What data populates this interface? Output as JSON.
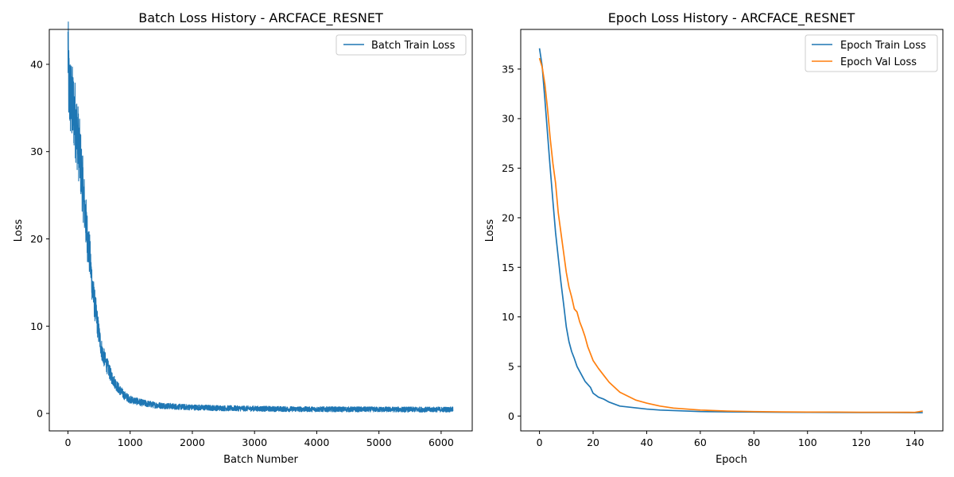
{
  "chart_data": [
    {
      "type": "line",
      "title": "Batch Loss History - ARCFACE_RESNET",
      "xlabel": "Batch Number",
      "ylabel": "Loss",
      "xlim": [
        -300,
        6500
      ],
      "ylim": [
        -2,
        44
      ],
      "xticks": [
        0,
        1000,
        2000,
        3000,
        4000,
        5000,
        6000
      ],
      "yticks": [
        0,
        10,
        20,
        30,
        40
      ],
      "grid": false,
      "legend_position": "top-right",
      "noisy": true,
      "series": [
        {
          "name": "Batch Train Loss",
          "color": "#1f77b4",
          "x": [
            0,
            10,
            30,
            60,
            100,
            150,
            200,
            250,
            300,
            350,
            400,
            450,
            500,
            550,
            600,
            700,
            800,
            900,
            1000,
            1200,
            1400,
            1600,
            1800,
            2000,
            2500,
            3000,
            3500,
            4000,
            4500,
            5000,
            5500,
            6000,
            6190
          ],
          "y": [
            42,
            38,
            36.5,
            35.5,
            34.5,
            32,
            29,
            25,
            21,
            18,
            14,
            11.5,
            9,
            7,
            6,
            4.2,
            3,
            2.1,
            1.6,
            1.2,
            0.95,
            0.85,
            0.75,
            0.7,
            0.6,
            0.55,
            0.5,
            0.48,
            0.47,
            0.46,
            0.45,
            0.45,
            0.45
          ]
        }
      ]
    },
    {
      "type": "line",
      "title": "Epoch Loss History - ARCFACE_RESNET",
      "xlabel": "Epoch",
      "ylabel": "Loss",
      "xlim": [
        -7,
        150.5
      ],
      "ylim": [
        -1.5,
        39
      ],
      "xticks": [
        0,
        20,
        40,
        60,
        80,
        100,
        120,
        140
      ],
      "yticks": [
        0,
        5,
        10,
        15,
        20,
        25,
        30,
        35
      ],
      "grid": false,
      "legend_position": "top-right",
      "series": [
        {
          "name": "Epoch Train Loss",
          "color": "#1f77b4",
          "x": [
            0,
            1,
            2,
            3,
            4,
            5,
            6,
            7,
            8,
            9,
            10,
            11,
            12,
            13,
            14,
            15,
            16,
            17,
            18,
            19,
            20,
            22,
            24,
            26,
            28,
            30,
            35,
            40,
            45,
            50,
            60,
            70,
            80,
            90,
            100,
            110,
            120,
            130,
            140,
            143
          ],
          "y": [
            37.1,
            35.3,
            32,
            28.5,
            25,
            21.7,
            18.5,
            16,
            13.5,
            11.3,
            9,
            7.5,
            6.5,
            5.8,
            5,
            4.5,
            4,
            3.5,
            3.2,
            2.9,
            2.3,
            1.9,
            1.7,
            1.4,
            1.2,
            1,
            0.85,
            0.7,
            0.6,
            0.55,
            0.45,
            0.42,
            0.4,
            0.38,
            0.37,
            0.36,
            0.35,
            0.35,
            0.34,
            0.34
          ]
        },
        {
          "name": "Epoch Val Loss",
          "color": "#ff7f0e",
          "x": [
            0,
            1,
            2,
            3,
            4,
            5,
            6,
            7,
            8,
            9,
            10,
            11,
            12,
            13,
            14,
            15,
            16,
            17,
            18,
            19,
            20,
            22,
            24,
            26,
            28,
            30,
            33,
            36,
            40,
            45,
            50,
            55,
            60,
            70,
            80,
            90,
            100,
            110,
            120,
            130,
            140,
            143
          ],
          "y": [
            36.1,
            35.2,
            33.5,
            31,
            28,
            25.5,
            23.5,
            20.5,
            18.5,
            16.5,
            14.5,
            13,
            12,
            10.8,
            10.5,
            9.5,
            8.8,
            8,
            7,
            6.3,
            5.6,
            4.8,
            4.1,
            3.4,
            2.9,
            2.4,
            2,
            1.6,
            1.3,
            1,
            0.8,
            0.7,
            0.6,
            0.5,
            0.45,
            0.42,
            0.4,
            0.4,
            0.38,
            0.38,
            0.37,
            0.5
          ]
        }
      ]
    }
  ]
}
